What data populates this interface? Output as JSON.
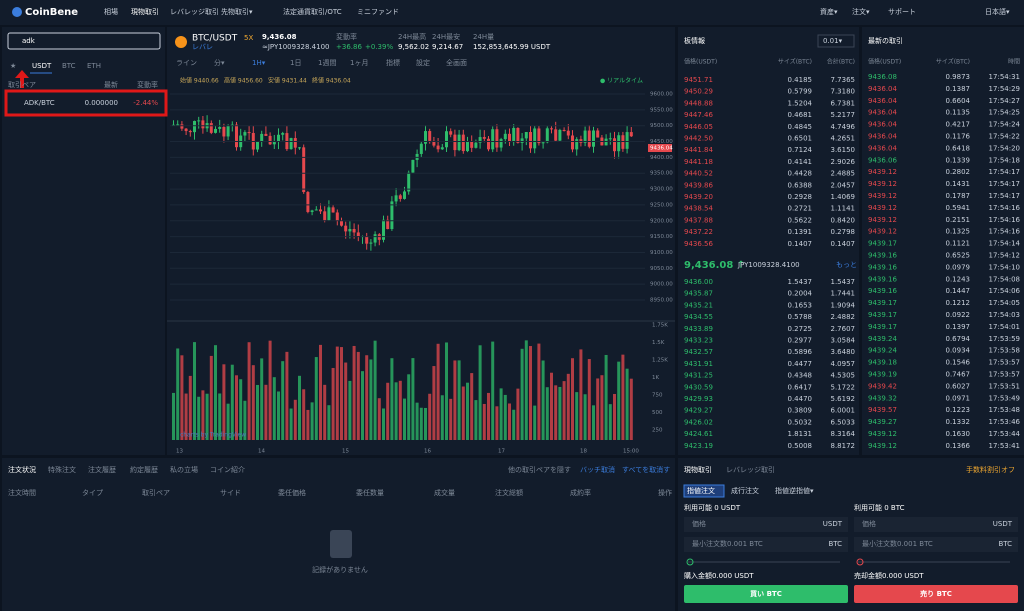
{
  "nav": {
    "logo": "CoinBene",
    "items": [
      "相場",
      "現物取引",
      "レバレッジ取引",
      "先物取引▾",
      "法定通貨取引/OTC",
      "ミニファンド"
    ],
    "right": [
      "資産▾",
      "注文▾",
      "サポート",
      "日本語▾"
    ]
  },
  "left": {
    "search": "adk",
    "tabs": [
      "★",
      "USDT",
      "BTC",
      "ETH"
    ],
    "headers": [
      "取引ペア",
      "最新",
      "変動率"
    ],
    "rows": [
      [
        "ADK/BTC",
        "0.000000",
        "-2.44%"
      ]
    ]
  },
  "ticker": {
    "pair": "BTC/USDT",
    "leverage": "5X",
    "sub": "レバレ",
    "price": "9,436.08",
    "jpy": "≈JPY1009328.4100",
    "stats": [
      {
        "label": "変動率",
        "value": "+36.86",
        "extra": "+0.39%"
      },
      {
        "label": "24H最高",
        "value": "9,562.02"
      },
      {
        "label": "24H最安",
        "value": "9,214.67"
      },
      {
        "label": "24H量",
        "value": "152,853,645.99 USDT"
      }
    ]
  },
  "chart": {
    "toolbar": [
      "ライン",
      "分▾",
      "1H▾",
      "1日",
      "1週間",
      "1ヶ月",
      "指標",
      "設定",
      "全画面"
    ],
    "ohlc": [
      "始値 9440.66",
      "高値 9456.60",
      "安値 9431.44",
      "終値 9436.04"
    ],
    "realtime": "● リアルタイム",
    "price_ticks": [
      "9600.00",
      "9550.00",
      "9500.00",
      "9450.00",
      "9400.00",
      "9350.00",
      "9300.00",
      "9250.00",
      "9200.00",
      "9150.00",
      "9100.00",
      "9050.00",
      "9000.00",
      "8950.00"
    ],
    "last": "9436.04",
    "volume_ticks": [
      "1.75K",
      "1.5K",
      "1.25K",
      "1K",
      "750",
      "500",
      "250"
    ],
    "x_ticks": [
      "13",
      "14",
      "15",
      "16",
      "17",
      "18",
      "15:00"
    ],
    "credit": "charts by TradingView"
  },
  "orderbook": {
    "title": "板情報",
    "precision": "0.01▾",
    "headers": [
      "価格(USDT)",
      "サイズ(BTC)",
      "合計(BTC)"
    ],
    "asks": [
      [
        "9451.71",
        "0.4185",
        "7.7365"
      ],
      [
        "9450.29",
        "0.5799",
        "7.3180"
      ],
      [
        "9448.88",
        "1.5204",
        "6.7381"
      ],
      [
        "9447.46",
        "0.4681",
        "5.2177"
      ],
      [
        "9446.05",
        "0.4845",
        "4.7496"
      ],
      [
        "9442.50",
        "0.6501",
        "4.2651"
      ],
      [
        "9441.84",
        "0.7124",
        "3.6150"
      ],
      [
        "9441.18",
        "0.4141",
        "2.9026"
      ],
      [
        "9440.52",
        "0.4428",
        "2.4885"
      ],
      [
        "9439.86",
        "0.6388",
        "2.0457"
      ],
      [
        "9439.20",
        "0.2928",
        "1.4069"
      ],
      [
        "9438.54",
        "0.2721",
        "1.1141"
      ],
      [
        "9437.88",
        "0.5622",
        "0.8420"
      ],
      [
        "9437.22",
        "0.1391",
        "0.2798"
      ],
      [
        "9436.56",
        "0.1407",
        "0.1407"
      ]
    ],
    "mid": {
      "price": "9,436.08 ↑",
      "jpy": "JPY1009328.4100",
      "more": "もっと"
    },
    "bids": [
      [
        "9436.00",
        "1.5437",
        "1.5437"
      ],
      [
        "9435.87",
        "0.2004",
        "1.7441"
      ],
      [
        "9435.21",
        "0.1653",
        "1.9094"
      ],
      [
        "9434.55",
        "0.5788",
        "2.4882"
      ],
      [
        "9433.89",
        "0.2725",
        "2.7607"
      ],
      [
        "9433.23",
        "0.2977",
        "3.0584"
      ],
      [
        "9432.57",
        "0.5896",
        "3.6480"
      ],
      [
        "9431.91",
        "0.4477",
        "4.0957"
      ],
      [
        "9431.25",
        "0.4348",
        "4.5305"
      ],
      [
        "9430.59",
        "0.6417",
        "5.1722"
      ],
      [
        "9429.93",
        "0.4470",
        "5.6192"
      ],
      [
        "9429.27",
        "0.3809",
        "6.0001"
      ],
      [
        "9426.02",
        "0.5032",
        "6.5033"
      ],
      [
        "9424.61",
        "1.8131",
        "8.3164"
      ],
      [
        "9423.19",
        "0.5008",
        "8.8172"
      ]
    ]
  },
  "trades": {
    "title": "最新の取引",
    "headers": [
      "価格(USDT)",
      "サイズ(BTC)",
      "時間"
    ],
    "rows": [
      [
        "9436.08",
        "0.9873",
        "17:54:31"
      ],
      [
        "9436.04",
        "0.1387",
        "17:54:29"
      ],
      [
        "9436.04",
        "0.6604",
        "17:54:27"
      ],
      [
        "9436.04",
        "0.1135",
        "17:54:25"
      ],
      [
        "9436.04",
        "0.4217",
        "17:54:24"
      ],
      [
        "9436.04",
        "0.1176",
        "17:54:22"
      ],
      [
        "9436.04",
        "0.6418",
        "17:54:20"
      ],
      [
        "9436.06",
        "0.1339",
        "17:54:18"
      ],
      [
        "9439.12",
        "0.2802",
        "17:54:17"
      ],
      [
        "9439.12",
        "0.1431",
        "17:54:17"
      ],
      [
        "9439.12",
        "0.1787",
        "17:54:17"
      ],
      [
        "9439.12",
        "0.5941",
        "17:54:16"
      ],
      [
        "9439.12",
        "0.2151",
        "17:54:16"
      ],
      [
        "9439.12",
        "0.1325",
        "17:54:16"
      ],
      [
        "9439.17",
        "0.1121",
        "17:54:14"
      ],
      [
        "9439.16",
        "0.6525",
        "17:54:12"
      ],
      [
        "9439.16",
        "0.0979",
        "17:54:10"
      ],
      [
        "9439.16",
        "0.1243",
        "17:54:08"
      ],
      [
        "9439.16",
        "0.1447",
        "17:54:06"
      ],
      [
        "9439.17",
        "0.1212",
        "17:54:05"
      ],
      [
        "9439.17",
        "0.0922",
        "17:54:03"
      ],
      [
        "9439.17",
        "0.1397",
        "17:54:01"
      ],
      [
        "9439.24",
        "0.6794",
        "17:53:59"
      ],
      [
        "9439.24",
        "0.0934",
        "17:53:58"
      ],
      [
        "9439.18",
        "0.1546",
        "17:53:57"
      ],
      [
        "9439.19",
        "0.7467",
        "17:53:57"
      ],
      [
        "9439.42",
        "0.6027",
        "17:53:51"
      ],
      [
        "9439.32",
        "0.0971",
        "17:53:49"
      ],
      [
        "9439.57",
        "0.1223",
        "17:53:48"
      ],
      [
        "9439.27",
        "0.1332",
        "17:53:46"
      ],
      [
        "9439.12",
        "0.1630",
        "17:53:44"
      ],
      [
        "9439.12",
        "0.1366",
        "17:53:41"
      ]
    ],
    "colors": [
      "#2ebd6b",
      "#e5484d",
      "#e5484d",
      "#e5484d",
      "#e5484d",
      "#e5484d",
      "#e5484d",
      "#2ebd6b",
      "#e5484d",
      "#e5484d",
      "#e5484d",
      "#e5484d",
      "#e5484d",
      "#e5484d",
      "#2ebd6b",
      "#2ebd6b",
      "#2ebd6b",
      "#2ebd6b",
      "#2ebd6b",
      "#2ebd6b",
      "#2ebd6b",
      "#2ebd6b",
      "#2ebd6b",
      "#2ebd6b",
      "#2ebd6b",
      "#2ebd6b",
      "#e5484d",
      "#2ebd6b",
      "#e5484d",
      "#2ebd6b",
      "#2ebd6b",
      "#2ebd6b"
    ]
  },
  "orders": {
    "tabs": [
      "注文状況",
      "特殊注文",
      "注文履歴",
      "約定履歴",
      "私の立場",
      "コイン紹介"
    ],
    "hide": "他の取引ペアを隠す",
    "batch": "バッチ取消",
    "cancel_all": "すべてを取消す",
    "columns": [
      "注文時間",
      "タイプ",
      "取引ペア",
      "サイド",
      "委任価格",
      "委任数量",
      "成交量",
      "注文総額",
      "成約率",
      "操作"
    ],
    "empty": "記録がありません"
  },
  "trade_panel": {
    "tabs": [
      "現物取引",
      "レバレッジ取引"
    ],
    "fee": "手数料割引オフ",
    "types": [
      "指値注文",
      "成行注文",
      "指値逆指値▾"
    ],
    "buy": {
      "available": "利用可能 0 USDT",
      "price": "価格",
      "price_unit": "USDT",
      "min": "最小注文数0.001 BTC",
      "min_unit": "BTC",
      "amount": "購入金額0.000 USDT",
      "button": "買い BTC"
    },
    "sell": {
      "available": "利用可能 0 BTC",
      "price": "価格",
      "price_unit": "USDT",
      "min": "最小注文数0.001 BTC",
      "min_unit": "BTC",
      "amount": "売却金額0.000 USDT",
      "button": "売り BTC"
    }
  }
}
